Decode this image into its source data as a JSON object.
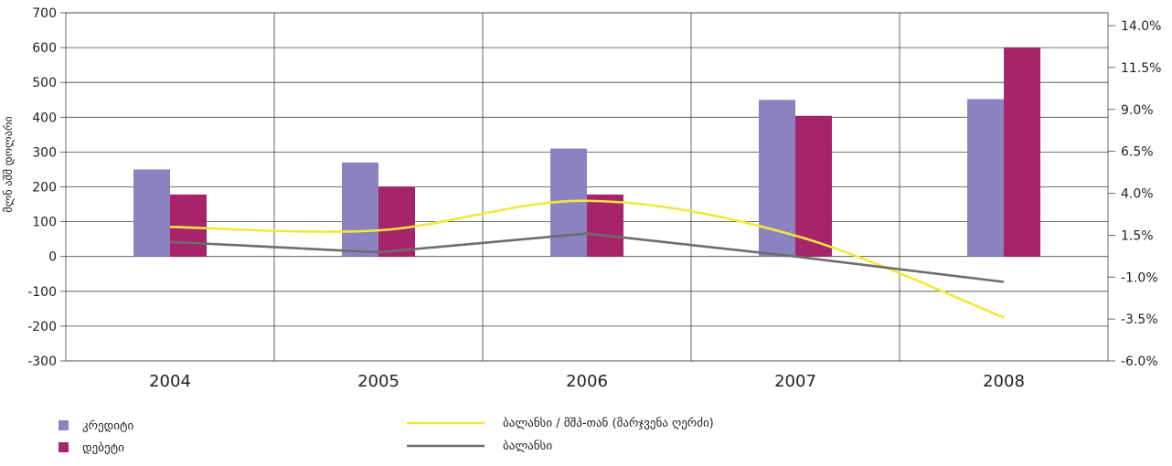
{
  "chart_data": {
    "type": "bar",
    "categories": [
      "2004",
      "2005",
      "2006",
      "2007",
      "2008"
    ],
    "series": [
      {
        "name": "კრედიტი",
        "kind": "bar",
        "axis": "left",
        "color": "#8a83bf",
        "values": [
          250,
          270,
          310,
          450,
          452
        ]
      },
      {
        "name": "დებეტი",
        "kind": "bar",
        "axis": "left",
        "color": "#a6256a",
        "values": [
          178,
          200,
          178,
          404,
          600
        ]
      },
      {
        "name": "ბალანსი / მშპ-თან (მარჯვენა ღერძი)",
        "kind": "line",
        "axis": "right",
        "smooth": true,
        "color": "#f2e83a",
        "values": [
          1.7,
          1.5,
          3.2,
          1.2,
          -3.5
        ]
      },
      {
        "name": "ბალანსი",
        "kind": "line",
        "axis": "left",
        "smooth": false,
        "color": "#6d6d6d",
        "values": [
          42,
          12,
          66,
          0,
          -73
        ]
      }
    ],
    "ylabel": "მლნ აშშ დოლარი",
    "ylim": [
      -300,
      700
    ],
    "yticks": [
      "700",
      "600",
      "500",
      "400",
      "300",
      "200",
      "100",
      "0",
      "-100",
      "-200",
      "-300"
    ],
    "y2lim": [
      -6.0,
      14.0
    ],
    "y2ticks": [
      "14.0%",
      "11.5%",
      "9.0%",
      "6.5%",
      "4.0%",
      "1.5%",
      "-1.0%",
      "-3.5%",
      "-6.0%"
    ],
    "grid": true,
    "legend_position": "bottom"
  }
}
